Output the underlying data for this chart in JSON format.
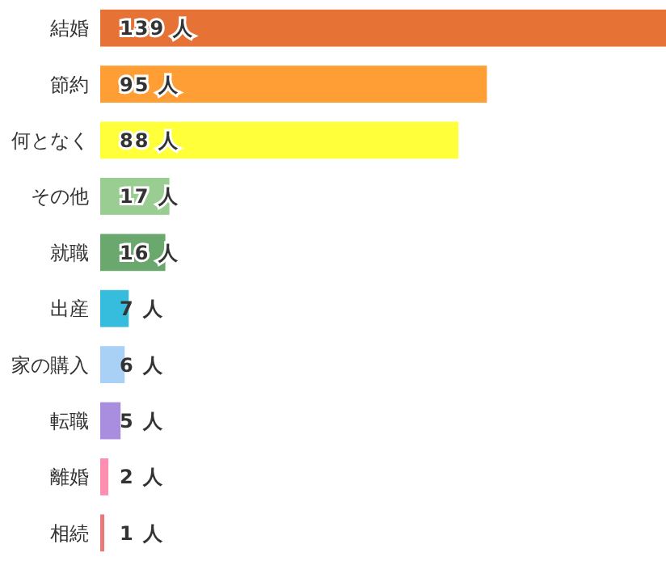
{
  "chart_data": {
    "type": "bar",
    "orientation": "horizontal",
    "categories": [
      "結婚",
      "節約",
      "何となく",
      "その他",
      "就職",
      "出産",
      "家の購入",
      "転職",
      "離婚",
      "相続"
    ],
    "values": [
      139,
      95,
      88,
      17,
      16,
      7,
      6,
      5,
      2,
      1
    ],
    "value_labels": [
      "139 人",
      "95 人",
      "88 人",
      "17 人",
      "16 人",
      "7 人",
      "6 人",
      "5 人",
      "2 人",
      "1 人"
    ],
    "colors": [
      "#e77236",
      "#ff9e35",
      "#ffff3a",
      "#9acd91",
      "#6aa86e",
      "#36bcdc",
      "#a9d1f5",
      "#a98ee0",
      "#ff8fb1",
      "#e9797b"
    ]
  }
}
